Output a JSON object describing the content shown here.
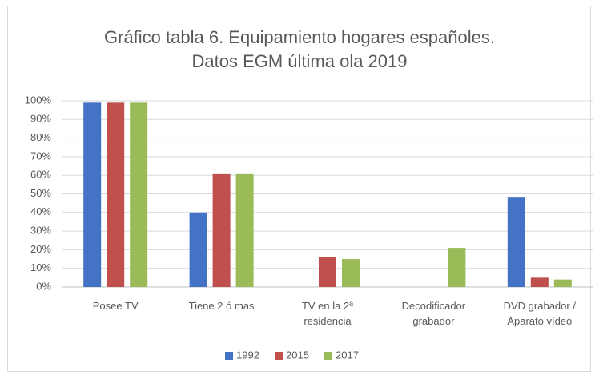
{
  "chart_data": {
    "type": "bar",
    "title": "Gráfico tabla 6. Equipamiento hogares españoles.\nDatos EGM última ola 2019",
    "categories": [
      "Posee TV",
      "Tiene 2 ó mas",
      "TV en la 2ª\nresidencia",
      "Decodificador\ngrabador",
      "DVD grabador /\nAparato vídeo"
    ],
    "series": [
      {
        "name": "1992",
        "color": "#4472c4",
        "values": [
          99,
          40,
          null,
          null,
          48
        ]
      },
      {
        "name": "2015",
        "color": "#c0504d",
        "values": [
          99,
          61,
          16,
          null,
          5
        ]
      },
      {
        "name": "2017",
        "color": "#9bbb59",
        "values": [
          99,
          61,
          15,
          21,
          4
        ]
      }
    ],
    "ylim": [
      0,
      100
    ],
    "yticks": [
      {
        "value": 0,
        "label": "0%"
      },
      {
        "value": 10,
        "label": "10%"
      },
      {
        "value": 20,
        "label": "20%"
      },
      {
        "value": 30,
        "label": "30%"
      },
      {
        "value": 40,
        "label": "40%"
      },
      {
        "value": 50,
        "label": "50%"
      },
      {
        "value": 60,
        "label": "60%"
      },
      {
        "value": 70,
        "label": "70%"
      },
      {
        "value": 80,
        "label": "80%"
      },
      {
        "value": 90,
        "label": "90%"
      },
      {
        "value": 100,
        "label": "100%"
      }
    ],
    "grid": true,
    "legend": "bottom"
  }
}
